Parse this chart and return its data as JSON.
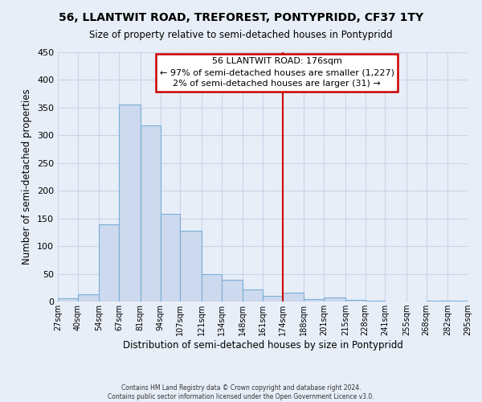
{
  "title": "56, LLANTWIT ROAD, TREFOREST, PONTYPRIDD, CF37 1TY",
  "subtitle": "Size of property relative to semi-detached houses in Pontypridd",
  "xlabel": "Distribution of semi-detached houses by size in Pontypridd",
  "ylabel": "Number of semi-detached properties",
  "bin_labels": [
    "27sqm",
    "40sqm",
    "54sqm",
    "67sqm",
    "81sqm",
    "94sqm",
    "107sqm",
    "121sqm",
    "134sqm",
    "148sqm",
    "161sqm",
    "174sqm",
    "188sqm",
    "201sqm",
    "215sqm",
    "228sqm",
    "241sqm",
    "255sqm",
    "268sqm",
    "282sqm",
    "295sqm"
  ],
  "bin_edges": [
    27,
    40,
    54,
    67,
    81,
    94,
    107,
    121,
    134,
    148,
    161,
    174,
    188,
    201,
    215,
    228,
    241,
    255,
    268,
    282,
    295
  ],
  "bar_heights": [
    6,
    13,
    140,
    356,
    318,
    158,
    128,
    50,
    39,
    22,
    10,
    16,
    5,
    7,
    3,
    2,
    0,
    0,
    2,
    1
  ],
  "bar_color": "#ccd9ee",
  "bar_edge_color": "#7aaed6",
  "property_line_x": 174,
  "property_line_color": "#cc0000",
  "annotation_title": "56 LLANTWIT ROAD: 176sqm",
  "annotation_line1": "← 97% of semi-detached houses are smaller (1,227)",
  "annotation_line2": "2% of semi-detached houses are larger (31) →",
  "annotation_box_color": "white",
  "annotation_box_edge_color": "#cc0000",
  "ylim": [
    0,
    450
  ],
  "yticks": [
    0,
    50,
    100,
    150,
    200,
    250,
    300,
    350,
    400,
    450
  ],
  "footer_line1": "Contains HM Land Registry data © Crown copyright and database right 2024.",
  "footer_line2": "Contains public sector information licensed under the Open Government Licence v3.0.",
  "background_color": "#e8eef8",
  "grid_color": "#c8d4e8"
}
